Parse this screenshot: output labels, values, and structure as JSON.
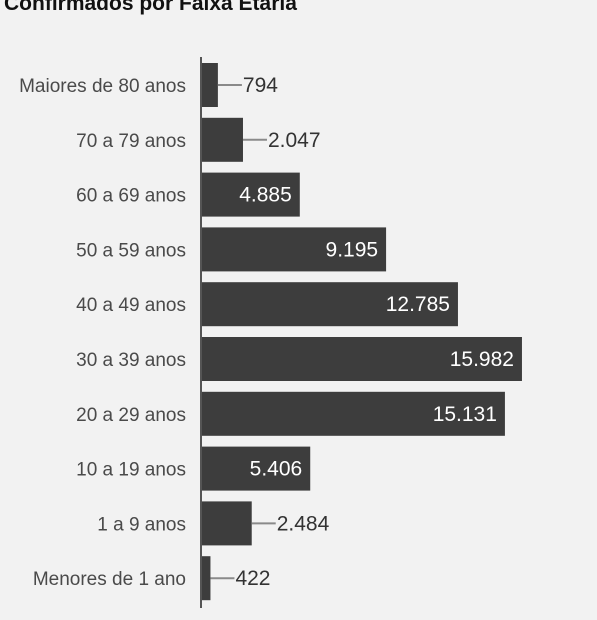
{
  "chart_data": {
    "type": "bar",
    "orientation": "horizontal",
    "title": "Confirmados por Faixa Etária",
    "categories": [
      "Maiores de 80 anos",
      "70 a 79 anos",
      "60 a 69 anos",
      "50 a 59 anos",
      "40 a 49 anos",
      "30 a 39 anos",
      "20 a 29 anos",
      "10 a 19 anos",
      "1 a 9 anos",
      "Menores de 1 ano"
    ],
    "values": [
      794,
      2047,
      4885,
      9195,
      12785,
      15982,
      15131,
      5406,
      2484,
      422
    ],
    "value_labels": [
      "794",
      "2.047",
      "4.885",
      "9.195",
      "12.785",
      "15.982",
      "15.131",
      "5.406",
      "2.484",
      "422"
    ],
    "xlim": [
      0,
      16000
    ],
    "grid": false,
    "colors": {
      "bar": "#3d3d3d",
      "axis": "#555555",
      "label_inside": "#ffffff",
      "label_outside": "#333333",
      "leader": "#8a8a8a",
      "background": "#f2f2f2"
    }
  }
}
